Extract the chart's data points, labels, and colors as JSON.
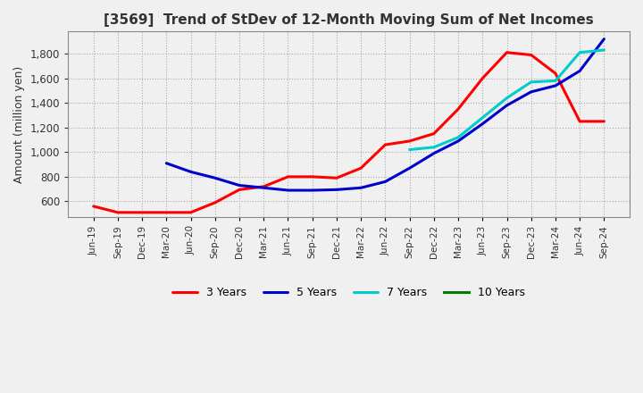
{
  "title": "[3569]  Trend of StDev of 12-Month Moving Sum of Net Incomes",
  "ylabel": "Amount (million yen)",
  "background_color": "#f0f0f0",
  "plot_bg_color": "#f0f0f0",
  "grid_color": "#aaaaaa",
  "ylim": [
    470,
    1980
  ],
  "yticks": [
    600,
    800,
    1000,
    1200,
    1400,
    1600,
    1800
  ],
  "x_labels": [
    "Jun-19",
    "Sep-19",
    "Dec-19",
    "Mar-20",
    "Jun-20",
    "Sep-20",
    "Dec-20",
    "Mar-21",
    "Jun-21",
    "Sep-21",
    "Dec-21",
    "Mar-22",
    "Jun-22",
    "Sep-22",
    "Dec-22",
    "Mar-23",
    "Jun-23",
    "Sep-23",
    "Dec-23",
    "Mar-24",
    "Jun-24",
    "Sep-24"
  ],
  "series": {
    "3 Years": {
      "color": "#ff0000",
      "values": [
        560,
        510,
        510,
        510,
        510,
        590,
        695,
        720,
        800,
        800,
        790,
        870,
        1060,
        1090,
        1150,
        1350,
        1600,
        1810,
        1790,
        1640,
        1250,
        1250
      ]
    },
    "5 Years": {
      "color": "#0000cc",
      "values": [
        null,
        null,
        null,
        910,
        840,
        790,
        730,
        710,
        690,
        690,
        695,
        710,
        760,
        870,
        990,
        1090,
        1230,
        1380,
        1490,
        1540,
        1660,
        1920
      ]
    },
    "7 Years": {
      "color": "#00cccc",
      "values": [
        null,
        null,
        null,
        null,
        null,
        null,
        null,
        null,
        null,
        null,
        null,
        null,
        null,
        1020,
        1040,
        1120,
        1280,
        1440,
        1570,
        1580,
        1810,
        1830
      ]
    },
    "10 Years": {
      "color": "#008000",
      "values": [
        null,
        null,
        null,
        null,
        null,
        null,
        null,
        null,
        null,
        null,
        null,
        null,
        null,
        null,
        null,
        null,
        null,
        null,
        null,
        null,
        null,
        null
      ]
    }
  },
  "legend_order": [
    "3 Years",
    "5 Years",
    "7 Years",
    "10 Years"
  ]
}
